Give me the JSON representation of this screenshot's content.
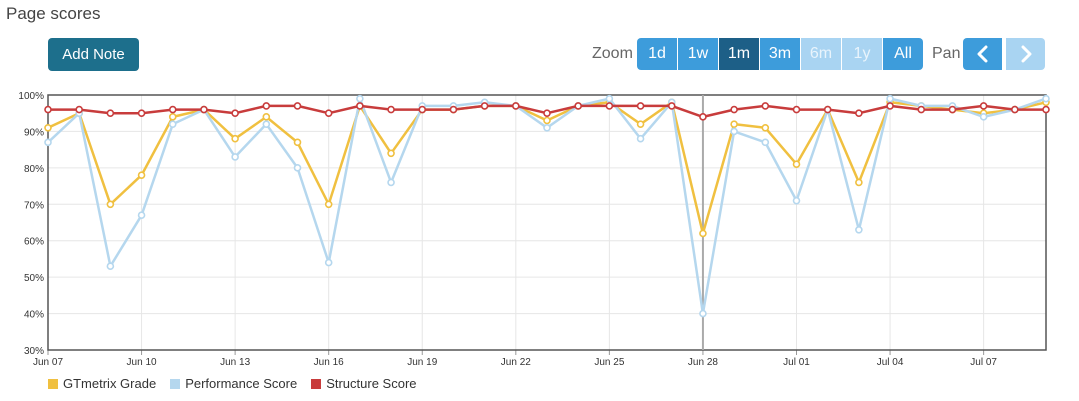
{
  "page_title": "Page scores",
  "toolbar": {
    "add_note_label": "Add Note",
    "zoom_label": "Zoom",
    "pan_label": "Pan",
    "zoom_options": [
      {
        "label": "1d",
        "state": "normal"
      },
      {
        "label": "1w",
        "state": "normal"
      },
      {
        "label": "1m",
        "state": "active"
      },
      {
        "label": "3m",
        "state": "normal"
      },
      {
        "label": "6m",
        "state": "disabled"
      },
      {
        "label": "1y",
        "state": "disabled"
      },
      {
        "label": "All",
        "state": "normal"
      }
    ]
  },
  "chart_data": {
    "type": "line",
    "x": [
      "Jun 07",
      "Jun 08",
      "Jun 09",
      "Jun 10",
      "Jun 11",
      "Jun 12",
      "Jun 13",
      "Jun 14",
      "Jun 15",
      "Jun 16",
      "Jun 17",
      "Jun 18",
      "Jun 19",
      "Jun 20",
      "Jun 21",
      "Jun 22",
      "Jun 23",
      "Jun 24",
      "Jun 25",
      "Jun 26",
      "Jun 27",
      "Jun 28",
      "Jun 29",
      "Jun 30",
      "Jul 01",
      "Jul 02",
      "Jul 03",
      "Jul 04",
      "Jul 05",
      "Jul 06",
      "Jul 07",
      "Jul 08",
      "Jul 09"
    ],
    "x_tick_labels": [
      "Jun 07",
      "Jun 10",
      "Jun 13",
      "Jun 16",
      "Jun 19",
      "Jun 22",
      "Jun 25",
      "Jun 28",
      "Jul 01",
      "Jul 04",
      "Jul 07"
    ],
    "y_ticks": [
      "100%",
      "90%",
      "80%",
      "70%",
      "60%",
      "50%",
      "40%",
      "30%"
    ],
    "ylim": [
      30,
      100
    ],
    "crosshair_at": "Jun 28",
    "series": [
      {
        "name": "GTmetrix Grade",
        "color": "#f0c040",
        "values": [
          91,
          95,
          70,
          78,
          94,
          96,
          88,
          94,
          87,
          70,
          97,
          84,
          96,
          96,
          97,
          97,
          93,
          97,
          98,
          92,
          98,
          62,
          92,
          91,
          81,
          96,
          76,
          98,
          97,
          96,
          95,
          96,
          98
        ]
      },
      {
        "name": "Performance Score",
        "color": "#b5d7ee",
        "values": [
          87,
          95,
          53,
          67,
          92,
          96,
          83,
          92,
          80,
          54,
          99,
          76,
          97,
          97,
          98,
          97,
          91,
          97,
          99,
          88,
          98,
          40,
          90,
          87,
          71,
          96,
          63,
          99,
          97,
          97,
          94,
          96,
          99
        ]
      },
      {
        "name": "Structure Score",
        "color": "#c83c3c",
        "values": [
          96,
          96,
          95,
          95,
          96,
          96,
          95,
          97,
          97,
          95,
          97,
          96,
          96,
          96,
          97,
          97,
          95,
          97,
          97,
          97,
          97,
          94,
          96,
          97,
          96,
          96,
          95,
          97,
          96,
          96,
          97,
          96,
          96
        ]
      }
    ]
  }
}
